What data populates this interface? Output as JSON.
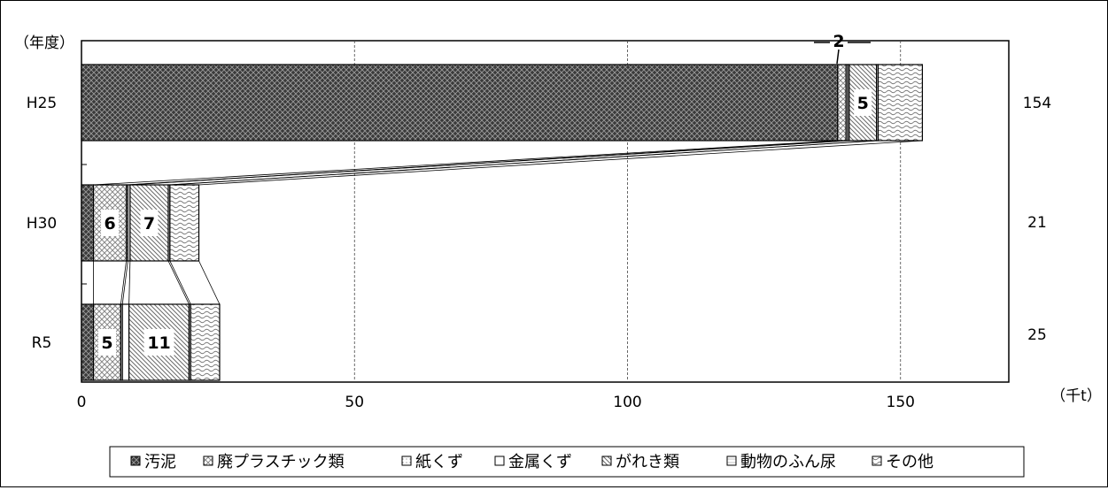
{
  "chart_data": {
    "type": "bar",
    "orientation": "horizontal",
    "stacked": true,
    "categories": [
      "H25",
      "H30",
      "R5"
    ],
    "series": [
      {
        "name": "汚泥",
        "values": [
          138.5,
          2.2,
          2.2
        ]
      },
      {
        "name": "廃プラスチック類",
        "values": [
          1.5,
          6,
          5
        ]
      },
      {
        "name": "紙くず",
        "values": [
          0.3,
          0.3,
          0.3
        ]
      },
      {
        "name": "金属くず",
        "values": [
          0.3,
          0.4,
          1.2
        ]
      },
      {
        "name": "がれき類",
        "values": [
          5,
          7,
          11
        ]
      },
      {
        "name": "動物のふん尿",
        "values": [
          0.3,
          0.3,
          0.3
        ]
      },
      {
        "name": "その他",
        "values": [
          8.1,
          5.3,
          5.3
        ]
      }
    ],
    "totals": [
      "154",
      "21",
      "25"
    ],
    "data_labels": [
      {
        "category": "H25",
        "series": "廃プラスチック類",
        "text": "2",
        "callout": true
      },
      {
        "category": "H25",
        "series": "がれき類",
        "text": "5"
      },
      {
        "category": "H30",
        "series": "廃プラスチック類",
        "text": "6"
      },
      {
        "category": "H30",
        "series": "がれき類",
        "text": "7"
      },
      {
        "category": "R5",
        "series": "廃プラスチック類",
        "text": "5"
      },
      {
        "category": "R5",
        "series": "がれき類",
        "text": "11"
      }
    ],
    "x_ticks": [
      0,
      50,
      100,
      150
    ],
    "xlim": [
      0,
      170
    ],
    "xlabel": "（千t）",
    "ylabel": "（年度）",
    "grid": "vertical",
    "legend_position": "bottom"
  }
}
